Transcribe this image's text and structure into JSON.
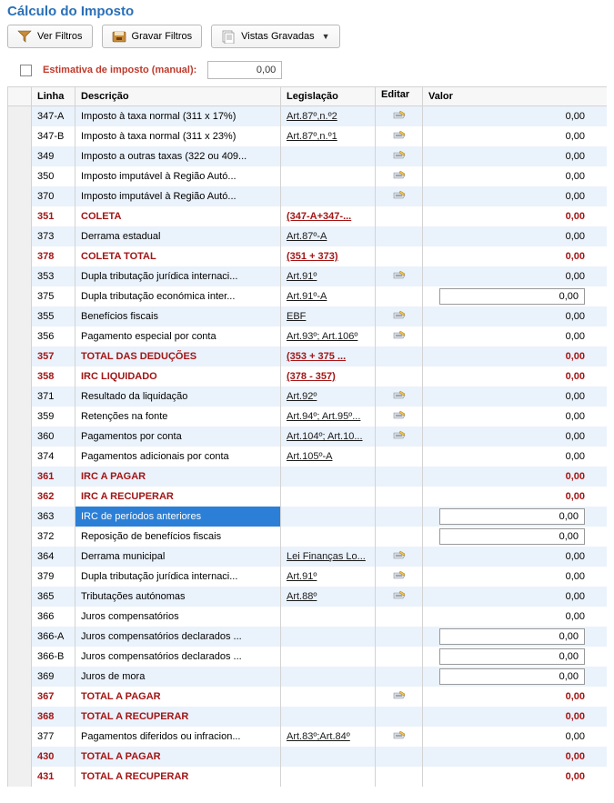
{
  "title": "Cálculo do Imposto",
  "toolbar": {
    "ver_filtros": "Ver Filtros",
    "gravar_filtros": "Gravar Filtros",
    "vistas_gravadas": "Vistas Gravadas"
  },
  "estimate": {
    "label": "Estimativa de imposto (manual):",
    "value": "0,00"
  },
  "headers": {
    "linha": "Linha",
    "descricao": "Descrição",
    "legislacao": "Legislação",
    "editar": "Editar",
    "valor": "Valor"
  },
  "colors": {
    "title": "#2970b8",
    "bold_row": "#a31515",
    "row_even": "#eaf2fb",
    "row_odd": "#ffffff",
    "selected_bg": "#2b7fd6"
  },
  "rows": [
    {
      "linha": "347-A",
      "desc": "Imposto à taxa normal (311 x 17%)",
      "leg": "Art.87º,n.º2",
      "leg_link": true,
      "edit": true,
      "valor": "0,00",
      "bold": false,
      "input": false
    },
    {
      "linha": "347-B",
      "desc": "Imposto à taxa normal (311 x 23%)",
      "leg": "Art.87º,n.º1",
      "leg_link": true,
      "edit": true,
      "valor": "0,00",
      "bold": false,
      "input": false
    },
    {
      "linha": "349",
      "desc": "Imposto a outras taxas (322 ou 409...",
      "leg": "",
      "leg_link": false,
      "edit": true,
      "valor": "0,00",
      "bold": false,
      "input": false
    },
    {
      "linha": "350",
      "desc": "Imposto imputável à Região Autó...",
      "leg": "",
      "leg_link": false,
      "edit": true,
      "valor": "0,00",
      "bold": false,
      "input": false
    },
    {
      "linha": "370",
      "desc": "Imposto imputável à Região Autó...",
      "leg": "",
      "leg_link": false,
      "edit": true,
      "valor": "0,00",
      "bold": false,
      "input": false
    },
    {
      "linha": "351",
      "desc": "COLETA",
      "leg": "(347-A+347-...",
      "leg_link": true,
      "edit": false,
      "valor": "0,00",
      "bold": true,
      "input": false
    },
    {
      "linha": "373",
      "desc": "Derrama estadual",
      "leg": "Art.87º-A",
      "leg_link": true,
      "edit": false,
      "valor": "0,00",
      "bold": false,
      "input": false
    },
    {
      "linha": "378",
      "desc": "COLETA TOTAL",
      "leg": "(351 + 373)",
      "leg_link": true,
      "edit": false,
      "valor": "0,00",
      "bold": true,
      "input": false
    },
    {
      "linha": "353",
      "desc": "Dupla tributação jurídica internaci...",
      "leg": "Art.91º",
      "leg_link": true,
      "edit": true,
      "valor": "0,00",
      "bold": false,
      "input": false
    },
    {
      "linha": "375",
      "desc": "Dupla tributação económica inter...",
      "leg": "Art.91º-A",
      "leg_link": true,
      "edit": false,
      "valor": "0,00",
      "bold": false,
      "input": true
    },
    {
      "linha": "355",
      "desc": "Benefícios fiscais",
      "leg": "EBF",
      "leg_link": true,
      "edit": true,
      "valor": "0,00",
      "bold": false,
      "input": false
    },
    {
      "linha": "356",
      "desc": "Pagamento especial por conta",
      "leg": "Art.93º; Art.106º",
      "leg_link": true,
      "edit": true,
      "valor": "0,00",
      "bold": false,
      "input": false
    },
    {
      "linha": "357",
      "desc": "TOTAL DAS DEDUÇÕES",
      "leg": "(353 + 375 ...",
      "leg_link": true,
      "edit": false,
      "valor": "0,00",
      "bold": true,
      "input": false
    },
    {
      "linha": "358",
      "desc": "IRC LIQUIDADO",
      "leg": "(378 - 357)",
      "leg_link": true,
      "edit": false,
      "valor": "0,00",
      "bold": true,
      "input": false
    },
    {
      "linha": "371",
      "desc": "Resultado da liquidação",
      "leg": "Art.92º",
      "leg_link": true,
      "edit": true,
      "valor": "0,00",
      "bold": false,
      "input": false
    },
    {
      "linha": "359",
      "desc": "Retenções na fonte",
      "leg": "Art.94º; Art.95º...",
      "leg_link": true,
      "edit": true,
      "valor": "0,00",
      "bold": false,
      "input": false
    },
    {
      "linha": "360",
      "desc": "Pagamentos por conta",
      "leg": "Art.104º; Art.10...",
      "leg_link": true,
      "edit": true,
      "valor": "0,00",
      "bold": false,
      "input": false
    },
    {
      "linha": "374",
      "desc": "Pagamentos adicionais por conta",
      "leg": "Art.105º-A",
      "leg_link": true,
      "edit": false,
      "valor": "0,00",
      "bold": false,
      "input": false
    },
    {
      "linha": "361",
      "desc": "IRC A PAGAR",
      "leg": "",
      "leg_link": false,
      "edit": false,
      "valor": "0,00",
      "bold": true,
      "input": false
    },
    {
      "linha": "362",
      "desc": "IRC A RECUPERAR",
      "leg": "",
      "leg_link": false,
      "edit": false,
      "valor": "0,00",
      "bold": true,
      "input": false
    },
    {
      "linha": "363",
      "desc": "IRC de períodos anteriores",
      "leg": "",
      "leg_link": false,
      "edit": false,
      "valor": "0,00",
      "bold": false,
      "input": true,
      "selected": true
    },
    {
      "linha": "372",
      "desc": "Reposição de benefícios fiscais",
      "leg": "",
      "leg_link": false,
      "edit": false,
      "valor": "0,00",
      "bold": false,
      "input": true
    },
    {
      "linha": "364",
      "desc": "Derrama municipal",
      "leg": "Lei Finanças Lo...",
      "leg_link": true,
      "edit": true,
      "valor": "0,00",
      "bold": false,
      "input": false
    },
    {
      "linha": "379",
      "desc": "Dupla tributação jurídica internaci...",
      "leg": "Art.91º",
      "leg_link": true,
      "edit": true,
      "valor": "0,00",
      "bold": false,
      "input": false
    },
    {
      "linha": "365",
      "desc": "Tributações autónomas",
      "leg": "Art.88º",
      "leg_link": true,
      "edit": true,
      "valor": "0,00",
      "bold": false,
      "input": false
    },
    {
      "linha": "366",
      "desc": "Juros compensatórios",
      "leg": "",
      "leg_link": false,
      "edit": false,
      "valor": "0,00",
      "bold": false,
      "input": false
    },
    {
      "linha": "366-A",
      "desc": "Juros compensatórios declarados ...",
      "leg": "",
      "leg_link": false,
      "edit": false,
      "valor": "0,00",
      "bold": false,
      "input": true
    },
    {
      "linha": "366-B",
      "desc": "Juros compensatórios declarados ...",
      "leg": "",
      "leg_link": false,
      "edit": false,
      "valor": "0,00",
      "bold": false,
      "input": true
    },
    {
      "linha": "369",
      "desc": "Juros de mora",
      "leg": "",
      "leg_link": false,
      "edit": false,
      "valor": "0,00",
      "bold": false,
      "input": true
    },
    {
      "linha": "367",
      "desc": "TOTAL A PAGAR",
      "leg": "",
      "leg_link": false,
      "edit": true,
      "valor": "0,00",
      "bold": true,
      "input": false
    },
    {
      "linha": "368",
      "desc": "TOTAL A RECUPERAR",
      "leg": "",
      "leg_link": false,
      "edit": false,
      "valor": "0,00",
      "bold": true,
      "input": false
    },
    {
      "linha": "377",
      "desc": "Pagamentos diferidos ou infracion...",
      "leg": "Art.83º;Art.84º",
      "leg_link": true,
      "edit": true,
      "valor": "0,00",
      "bold": false,
      "input": false
    },
    {
      "linha": "430",
      "desc": "TOTAL A PAGAR",
      "leg": "",
      "leg_link": false,
      "edit": false,
      "valor": "0,00",
      "bold": true,
      "input": false
    },
    {
      "linha": "431",
      "desc": "TOTAL A RECUPERAR",
      "leg": "",
      "leg_link": false,
      "edit": false,
      "valor": "0,00",
      "bold": true,
      "input": false
    }
  ]
}
